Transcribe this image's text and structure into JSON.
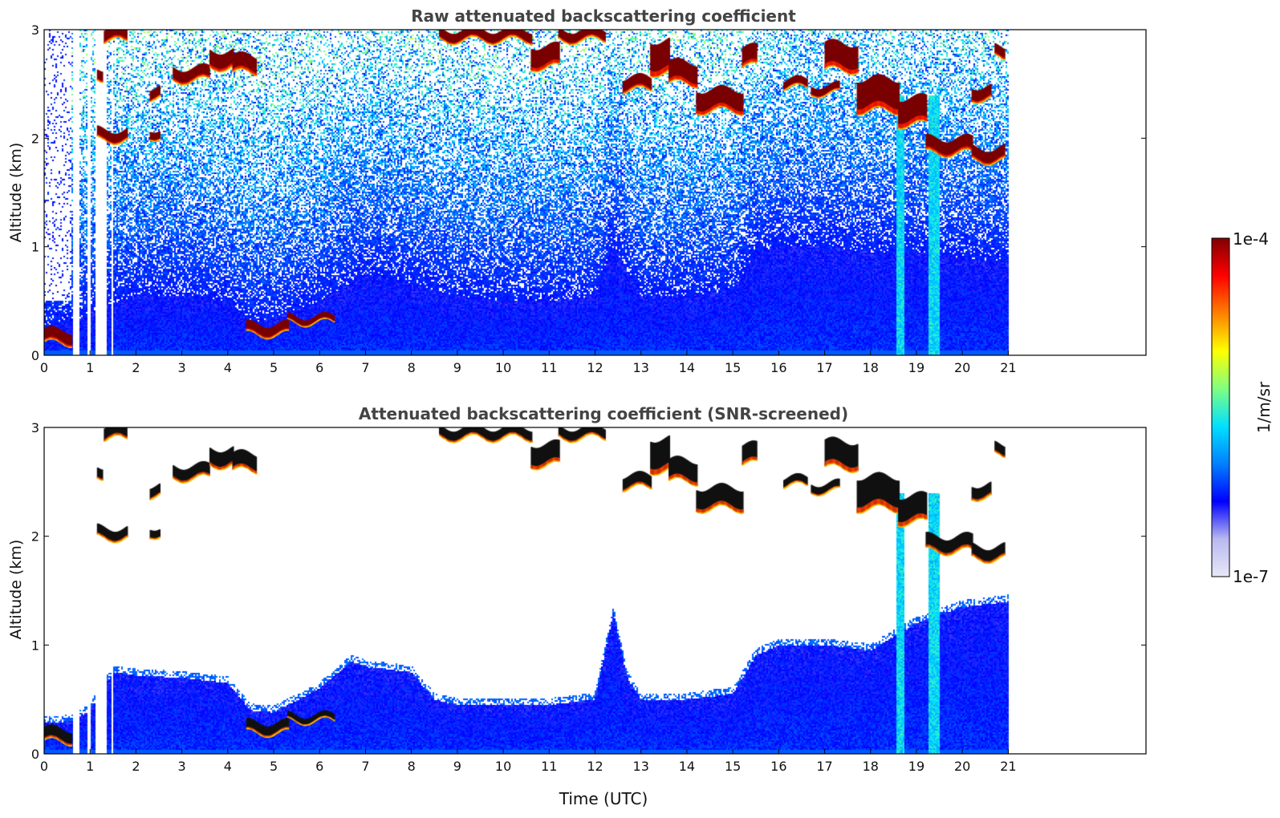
{
  "chart_data": [
    {
      "type": "heatmap",
      "title": "Raw attenuated backscattering coefficient",
      "xlabel": "",
      "ylabel": "Altitude (km)",
      "xlim": [
        0,
        24
      ],
      "ylim": [
        0,
        3
      ],
      "xticks": [
        0,
        1,
        2,
        3,
        4,
        5,
        6,
        7,
        8,
        9,
        10,
        11,
        12,
        13,
        14,
        15,
        16,
        17,
        18,
        19,
        20,
        21
      ],
      "yticks": [
        0,
        1,
        2,
        3
      ],
      "data_end_time": 21,
      "gaps": [
        [
          0.62,
          0.78
        ],
        [
          0.95,
          1.02
        ],
        [
          1.13,
          1.38
        ],
        [
          1.47,
          1.5
        ]
      ],
      "noise_floor": "high",
      "boundary_layer": [
        [
          0,
          0.28
        ],
        [
          0.6,
          0.3
        ],
        [
          1,
          0.4
        ],
        [
          2,
          0.55
        ],
        [
          3,
          0.55
        ],
        [
          4,
          0.5
        ],
        [
          4.5,
          0.3
        ],
        [
          5,
          0.35
        ],
        [
          6,
          0.5
        ],
        [
          7,
          0.75
        ],
        [
          8,
          0.65
        ],
        [
          9,
          0.55
        ],
        [
          10,
          0.5
        ],
        [
          11,
          0.5
        ],
        [
          12,
          0.55
        ],
        [
          12.4,
          1.0
        ],
        [
          13,
          0.55
        ],
        [
          14,
          0.55
        ],
        [
          15,
          0.6
        ],
        [
          15.5,
          0.95
        ],
        [
          16,
          1.0
        ],
        [
          17,
          1.0
        ],
        [
          18,
          0.95
        ],
        [
          19,
          0.95
        ],
        [
          20,
          0.9
        ],
        [
          21,
          0.85
        ]
      ],
      "cloud_segments": [
        {
          "t0": 0.0,
          "t1": 0.6,
          "alt": 0.17,
          "thick": 0.12
        },
        {
          "t0": 4.4,
          "t1": 5.3,
          "alt": 0.24,
          "thick": 0.1
        },
        {
          "t0": 5.3,
          "t1": 6.3,
          "alt": 0.33,
          "thick": 0.06
        },
        {
          "t0": 1.3,
          "t1": 1.8,
          "alt": 2.95,
          "thick": 0.12
        },
        {
          "t0": 1.15,
          "t1": 1.25,
          "alt": 2.6,
          "thick": 0.1
        },
        {
          "t0": 1.15,
          "t1": 1.8,
          "alt": 2.03,
          "thick": 0.1
        },
        {
          "t0": 2.3,
          "t1": 2.5,
          "alt": 2.05,
          "thick": 0.08
        },
        {
          "t0": 2.3,
          "t1": 2.5,
          "alt": 2.42,
          "thick": 0.1
        },
        {
          "t0": 2.8,
          "t1": 3.6,
          "alt": 2.59,
          "thick": 0.12
        },
        {
          "t0": 3.6,
          "t1": 4.1,
          "alt": 2.73,
          "thick": 0.16
        },
        {
          "t0": 4.1,
          "t1": 4.6,
          "alt": 2.68,
          "thick": 0.16
        },
        {
          "t0": 8.6,
          "t1": 10.6,
          "alt": 2.95,
          "thick": 0.1
        },
        {
          "t0": 10.6,
          "t1": 11.2,
          "alt": 2.75,
          "thick": 0.2
        },
        {
          "t0": 11.2,
          "t1": 12.2,
          "alt": 2.95,
          "thick": 0.1
        },
        {
          "t0": 12.6,
          "t1": 13.2,
          "alt": 2.5,
          "thick": 0.12
        },
        {
          "t0": 13.2,
          "t1": 13.6,
          "alt": 2.75,
          "thick": 0.3
        },
        {
          "t0": 13.6,
          "t1": 14.2,
          "alt": 2.6,
          "thick": 0.2
        },
        {
          "t0": 14.2,
          "t1": 15.2,
          "alt": 2.35,
          "thick": 0.2
        },
        {
          "t0": 15.2,
          "t1": 15.5,
          "alt": 2.75,
          "thick": 0.18
        },
        {
          "t0": 16.1,
          "t1": 16.6,
          "alt": 2.5,
          "thick": 0.08
        },
        {
          "t0": 16.7,
          "t1": 17.3,
          "alt": 2.45,
          "thick": 0.08
        },
        {
          "t0": 17.0,
          "t1": 17.7,
          "alt": 2.75,
          "thick": 0.25
        },
        {
          "t0": 17.7,
          "t1": 18.6,
          "alt": 2.4,
          "thick": 0.3
        },
        {
          "t0": 18.6,
          "t1": 19.2,
          "alt": 2.25,
          "thick": 0.25
        },
        {
          "t0": 19.2,
          "t1": 20.2,
          "alt": 1.93,
          "thick": 0.14
        },
        {
          "t0": 20.2,
          "t1": 20.9,
          "alt": 1.85,
          "thick": 0.12
        },
        {
          "t0": 20.2,
          "t1": 20.6,
          "alt": 2.42,
          "thick": 0.12
        },
        {
          "t0": 20.7,
          "t1": 20.9,
          "alt": 2.8,
          "thick": 0.1
        }
      ],
      "precip_columns": [
        [
          18.55,
          18.75
        ],
        [
          19.25,
          19.5
        ]
      ]
    },
    {
      "type": "heatmap",
      "title": "Attenuated backscattering coefficient (SNR-screened)",
      "xlabel": "Time (UTC)",
      "ylabel": "Altitude (km)",
      "xlim": [
        0,
        24
      ],
      "ylim": [
        0,
        3
      ],
      "xticks": [
        0,
        1,
        2,
        3,
        4,
        5,
        6,
        7,
        8,
        9,
        10,
        11,
        12,
        13,
        14,
        15,
        16,
        17,
        18,
        19,
        20,
        21
      ],
      "yticks": [
        0,
        1,
        2,
        3
      ],
      "data_end_time": 21,
      "gaps": [
        [
          0.62,
          0.78
        ],
        [
          0.95,
          1.02
        ],
        [
          1.13,
          1.38
        ],
        [
          1.47,
          1.5
        ]
      ],
      "noise_floor": "screened",
      "boundary_layer": [
        [
          0,
          0.28
        ],
        [
          0.6,
          0.3
        ],
        [
          1,
          0.4
        ],
        [
          1.5,
          0.75
        ],
        [
          2,
          0.72
        ],
        [
          3,
          0.7
        ],
        [
          4,
          0.65
        ],
        [
          4.5,
          0.4
        ],
        [
          5,
          0.38
        ],
        [
          6,
          0.6
        ],
        [
          6.7,
          0.85
        ],
        [
          7,
          0.8
        ],
        [
          8,
          0.75
        ],
        [
          8.5,
          0.5
        ],
        [
          9,
          0.45
        ],
        [
          10,
          0.45
        ],
        [
          11,
          0.45
        ],
        [
          12,
          0.5
        ],
        [
          12.4,
          1.3
        ],
        [
          12.7,
          0.7
        ],
        [
          13,
          0.5
        ],
        [
          14,
          0.5
        ],
        [
          15,
          0.55
        ],
        [
          15.5,
          0.9
        ],
        [
          16,
          1.0
        ],
        [
          17,
          1.0
        ],
        [
          18,
          0.95
        ],
        [
          19,
          1.2
        ],
        [
          20,
          1.35
        ],
        [
          21,
          1.4
        ]
      ],
      "cloud_segments": [
        {
          "t0": 0.0,
          "t1": 0.6,
          "alt": 0.17,
          "thick": 0.12
        },
        {
          "t0": 4.4,
          "t1": 5.3,
          "alt": 0.24,
          "thick": 0.1
        },
        {
          "t0": 5.3,
          "t1": 6.3,
          "alt": 0.33,
          "thick": 0.06
        },
        {
          "t0": 1.3,
          "t1": 1.8,
          "alt": 2.95,
          "thick": 0.12
        },
        {
          "t0": 1.15,
          "t1": 1.25,
          "alt": 2.6,
          "thick": 0.1
        },
        {
          "t0": 1.15,
          "t1": 1.8,
          "alt": 2.03,
          "thick": 0.1
        },
        {
          "t0": 2.3,
          "t1": 2.5,
          "alt": 2.05,
          "thick": 0.08
        },
        {
          "t0": 2.3,
          "t1": 2.5,
          "alt": 2.42,
          "thick": 0.1
        },
        {
          "t0": 2.8,
          "t1": 3.6,
          "alt": 2.59,
          "thick": 0.12
        },
        {
          "t0": 3.6,
          "t1": 4.1,
          "alt": 2.73,
          "thick": 0.16
        },
        {
          "t0": 4.1,
          "t1": 4.6,
          "alt": 2.68,
          "thick": 0.16
        },
        {
          "t0": 8.6,
          "t1": 10.6,
          "alt": 2.95,
          "thick": 0.1
        },
        {
          "t0": 10.6,
          "t1": 11.2,
          "alt": 2.75,
          "thick": 0.2
        },
        {
          "t0": 11.2,
          "t1": 12.2,
          "alt": 2.95,
          "thick": 0.1
        },
        {
          "t0": 12.6,
          "t1": 13.2,
          "alt": 2.5,
          "thick": 0.12
        },
        {
          "t0": 13.2,
          "t1": 13.6,
          "alt": 2.75,
          "thick": 0.3
        },
        {
          "t0": 13.6,
          "t1": 14.2,
          "alt": 2.6,
          "thick": 0.2
        },
        {
          "t0": 14.2,
          "t1": 15.2,
          "alt": 2.35,
          "thick": 0.2
        },
        {
          "t0": 15.2,
          "t1": 15.5,
          "alt": 2.75,
          "thick": 0.18
        },
        {
          "t0": 16.1,
          "t1": 16.6,
          "alt": 2.5,
          "thick": 0.08
        },
        {
          "t0": 16.7,
          "t1": 17.3,
          "alt": 2.45,
          "thick": 0.08
        },
        {
          "t0": 17.0,
          "t1": 17.7,
          "alt": 2.75,
          "thick": 0.25
        },
        {
          "t0": 17.7,
          "t1": 18.6,
          "alt": 2.4,
          "thick": 0.3
        },
        {
          "t0": 18.6,
          "t1": 19.2,
          "alt": 2.25,
          "thick": 0.25
        },
        {
          "t0": 19.2,
          "t1": 20.2,
          "alt": 1.93,
          "thick": 0.14
        },
        {
          "t0": 20.2,
          "t1": 20.9,
          "alt": 1.85,
          "thick": 0.12
        },
        {
          "t0": 20.2,
          "t1": 20.6,
          "alt": 2.42,
          "thick": 0.12
        },
        {
          "t0": 20.7,
          "t1": 20.9,
          "alt": 2.8,
          "thick": 0.1
        }
      ],
      "precip_columns": [
        [
          18.55,
          18.75
        ],
        [
          19.25,
          19.5
        ]
      ]
    }
  ],
  "colorbar": {
    "label": "1/m/sr",
    "max_label": "1e-4",
    "min_label": "1e-7",
    "scale": "log",
    "range": [
      1e-07,
      0.0001
    ],
    "colormap": "jet",
    "colors": [
      "#e8e8f8",
      "#b8b8f0",
      "#0000ff",
      "#0080ff",
      "#00e0ff",
      "#80ff80",
      "#ffff00",
      "#ff8000",
      "#ff0000",
      "#800000"
    ]
  }
}
